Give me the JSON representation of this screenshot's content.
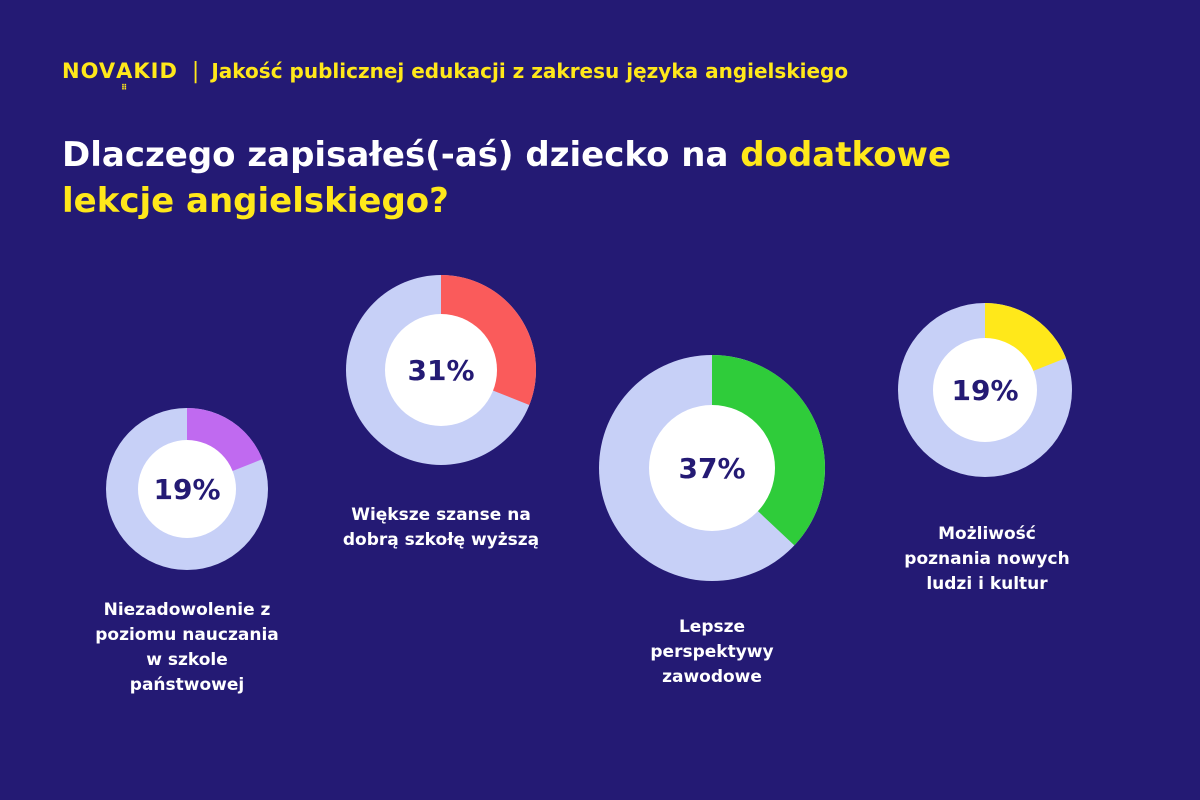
{
  "header": {
    "logo_pre": "NOV",
    "logo_a": "A",
    "logo_post": "KID",
    "separator": "|",
    "subtitle": "Jakość publicznej edukacji z zakresu języka angielskiego"
  },
  "title": {
    "part1": "Dlaczego zapisałeś(-aś) dziecko na ",
    "highlight1": "dodatkowe",
    "highlight2": "lekcje angielskiego?"
  },
  "colors": {
    "background": "#241a74",
    "ring_base": "#c7d0f7",
    "accent_yellow": "#ffe81a",
    "slice_purple": "#c06af0",
    "slice_red": "#fa5b5b",
    "slice_green": "#2fcc3a",
    "slice_yellow": "#ffe81a"
  },
  "chart_data": {
    "type": "pie",
    "items": [
      {
        "label": "Niezadowolenie z poziomu nauczania w szkole państwowej",
        "value": 19,
        "value_label": "19%",
        "color": "#c06af0"
      },
      {
        "label": "Większe szanse na dobrą szkołę wyższą",
        "value": 31,
        "value_label": "31%",
        "color": "#fa5b5b"
      },
      {
        "label": "Lepsze perspektywy zawodowe",
        "value": 37,
        "value_label": "37%",
        "color": "#2fcc3a"
      },
      {
        "label": "Możliwość poznania nowych ludzi i kultur",
        "value": 19,
        "value_label": "19%",
        "color": "#ffe81a"
      }
    ]
  }
}
